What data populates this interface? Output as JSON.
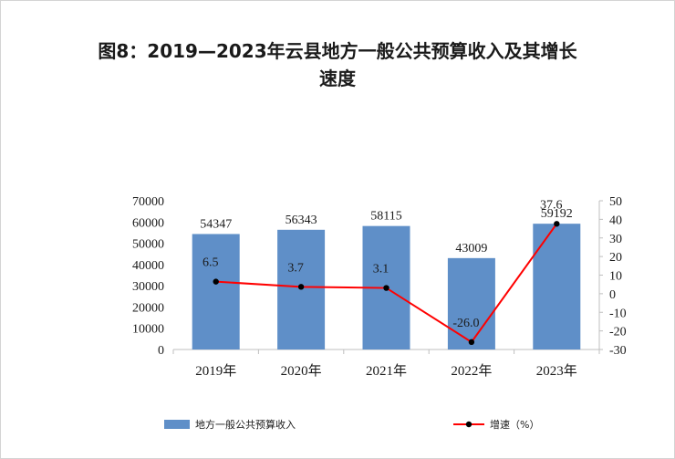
{
  "title": {
    "line1": "图8：2019—2023年云县地方一般公共预算收入及其增长",
    "line2": "速度"
  },
  "chart_data": {
    "type": "bar",
    "categories": [
      "2019年",
      "2020年",
      "2021年",
      "2022年",
      "2023年"
    ],
    "series": [
      {
        "name": "地方一般公共预算收入",
        "type": "bar",
        "axis": "left",
        "values": [
          54347,
          56343,
          58115,
          43009,
          59192
        ],
        "color": "#5F8FC8"
      },
      {
        "name": "增速（%）",
        "type": "line",
        "axis": "right",
        "values": [
          6.5,
          3.7,
          3.1,
          -26.0,
          37.6
        ],
        "data_labels": [
          "6.5",
          "3.7",
          "3.1",
          "-26.0",
          "37.6"
        ],
        "color": "#FF0000",
        "marker_color": "#000000"
      }
    ],
    "y_left": {
      "lim": [
        0,
        70000
      ],
      "ticks": [
        70000,
        60000,
        50000,
        40000,
        30000,
        20000,
        10000,
        0
      ]
    },
    "y_right": {
      "lim": [
        -30,
        50
      ],
      "ticks": [
        50,
        40,
        30,
        20,
        10,
        0,
        -10,
        -20,
        -30
      ]
    },
    "grid": false,
    "legend_position": "bottom"
  }
}
